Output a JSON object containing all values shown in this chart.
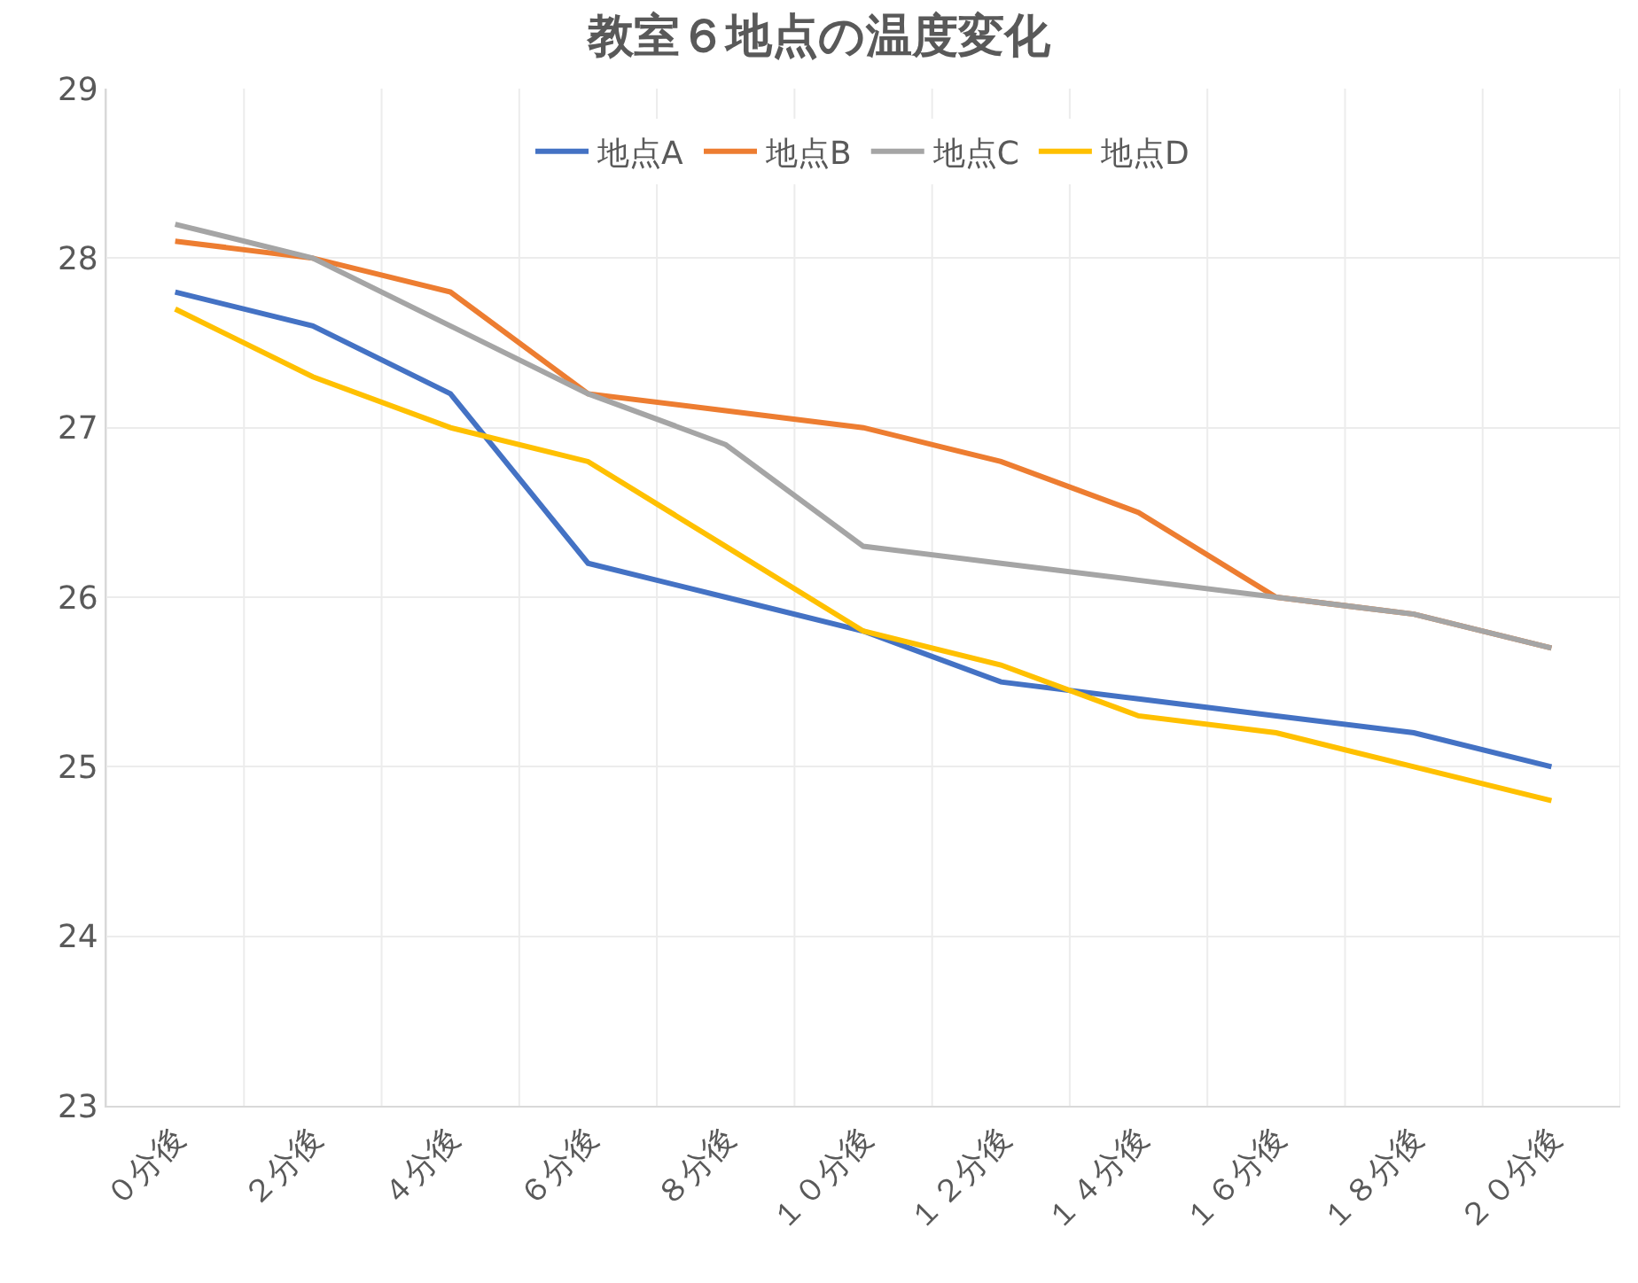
{
  "chart_data": {
    "type": "line",
    "title": "教室６地点の温度変化",
    "categories": [
      "０分後",
      "２分後",
      "４分後",
      "６分後",
      "８分後",
      "１０分後",
      "１２分後",
      "１４分後",
      "１６分後",
      "１８分後",
      "２０分後"
    ],
    "series": [
      {
        "name": "地点A",
        "color": "#4472c4",
        "values": [
          27.8,
          27.6,
          27.2,
          26.2,
          26.0,
          25.8,
          25.5,
          25.4,
          25.3,
          25.2,
          25.0
        ]
      },
      {
        "name": "地点B",
        "color": "#ed7d31",
        "values": [
          28.1,
          28.0,
          27.8,
          27.2,
          27.1,
          27.0,
          26.8,
          26.5,
          26.0,
          25.9,
          25.7
        ]
      },
      {
        "name": "地点C",
        "color": "#a5a5a5",
        "values": [
          28.2,
          28.0,
          27.6,
          27.2,
          26.9,
          26.3,
          26.2,
          26.1,
          26.0,
          25.9,
          25.7
        ]
      },
      {
        "name": "地点D",
        "color": "#ffc000",
        "values": [
          27.7,
          27.3,
          27.0,
          26.8,
          26.3,
          25.8,
          25.6,
          25.3,
          25.2,
          25.0,
          24.8
        ]
      }
    ],
    "ylim": [
      23,
      29
    ],
    "yticks": [
      23,
      24,
      25,
      26,
      27,
      28,
      29
    ],
    "grid": true,
    "legend": "top",
    "line_style": "solid"
  }
}
